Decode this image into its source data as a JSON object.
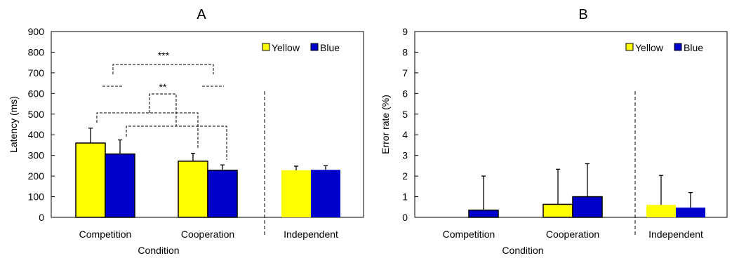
{
  "chart_data": [
    {
      "type": "bar",
      "title": "A",
      "xlabel": "Condition",
      "ylabel": "Latency (ms)",
      "ylim": [
        0,
        900
      ],
      "yticks": [
        0,
        100,
        200,
        300,
        400,
        500,
        600,
        700,
        800,
        900
      ],
      "categories": [
        "Competition",
        "Cooperation",
        "Independent"
      ],
      "legend_position": "top-right",
      "series": [
        {
          "name": "Yellow",
          "color": "#FFFF00",
          "values": [
            360,
            272,
            228
          ],
          "errors": [
            72,
            38,
            20
          ]
        },
        {
          "name": "Blue",
          "color": "#0000CC",
          "values": [
            307,
            228,
            230
          ],
          "errors": [
            68,
            26,
            20
          ]
        }
      ],
      "significance": [
        {
          "label": "***"
        },
        {
          "label": "**"
        }
      ],
      "grid": false
    },
    {
      "type": "bar",
      "title": "B",
      "xlabel": "Condition",
      "ylabel": "Error rate (%)",
      "ylim": [
        0,
        9
      ],
      "yticks": [
        0,
        1,
        2,
        3,
        4,
        5,
        6,
        7,
        8,
        9
      ],
      "categories": [
        "Competition",
        "Cooperation",
        "Independent"
      ],
      "legend_position": "top-right",
      "series": [
        {
          "name": "Yellow",
          "color": "#FFFF00",
          "values": [
            0,
            0.63,
            0.6
          ],
          "errors": [
            0,
            1.7,
            1.43
          ]
        },
        {
          "name": "Blue",
          "color": "#0000CC",
          "values": [
            0.35,
            1.0,
            0.47
          ],
          "errors": [
            1.65,
            1.6,
            0.73
          ]
        }
      ],
      "grid": false
    }
  ]
}
